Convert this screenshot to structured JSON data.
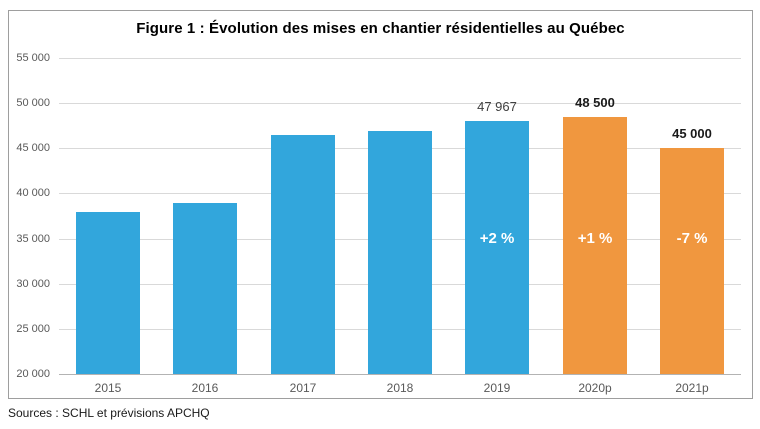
{
  "figure": {
    "source_note": "Sources : SCHL et prévisions APCHQ"
  },
  "chart_data": {
    "type": "bar",
    "title": "Figure 1 : Évolution des mises en chantier résidentielles au Québec",
    "categories": [
      "2015",
      "2016",
      "2017",
      "2018",
      "2019",
      "2020p",
      "2021p"
    ],
    "values": [
      37900,
      38900,
      46500,
      46900,
      47967,
      48500,
      45000
    ],
    "bar_colors": [
      "#32a6dc",
      "#32a6dc",
      "#32a6dc",
      "#32a6dc",
      "#32a6dc",
      "#f0973f",
      "#f0973f"
    ],
    "value_labels": [
      "",
      "",
      "",
      "",
      "47 967",
      "48 500",
      "45 000"
    ],
    "value_label_bold": [
      false,
      false,
      false,
      false,
      false,
      true,
      true
    ],
    "pct_labels": [
      "",
      "",
      "",
      "",
      "+2 %",
      "+1 %",
      "-7 %"
    ],
    "pct_label_value_level": 35000,
    "xlabel": "",
    "ylabel": "",
    "ylim": [
      20000,
      55000
    ],
    "ytick_step": 5000,
    "ytick_labels": [
      "55 000",
      "50 000",
      "45 000",
      "40 000",
      "35 000",
      "30 000",
      "25 000",
      "20 000"
    ],
    "grid": true,
    "legend_position": "none",
    "colors": {
      "actual": "#32a6dc",
      "forecast": "#f0973f",
      "pct_label_text": "#ffffff",
      "gridline": "#d9d9d9",
      "axis_text": "#595959"
    }
  }
}
